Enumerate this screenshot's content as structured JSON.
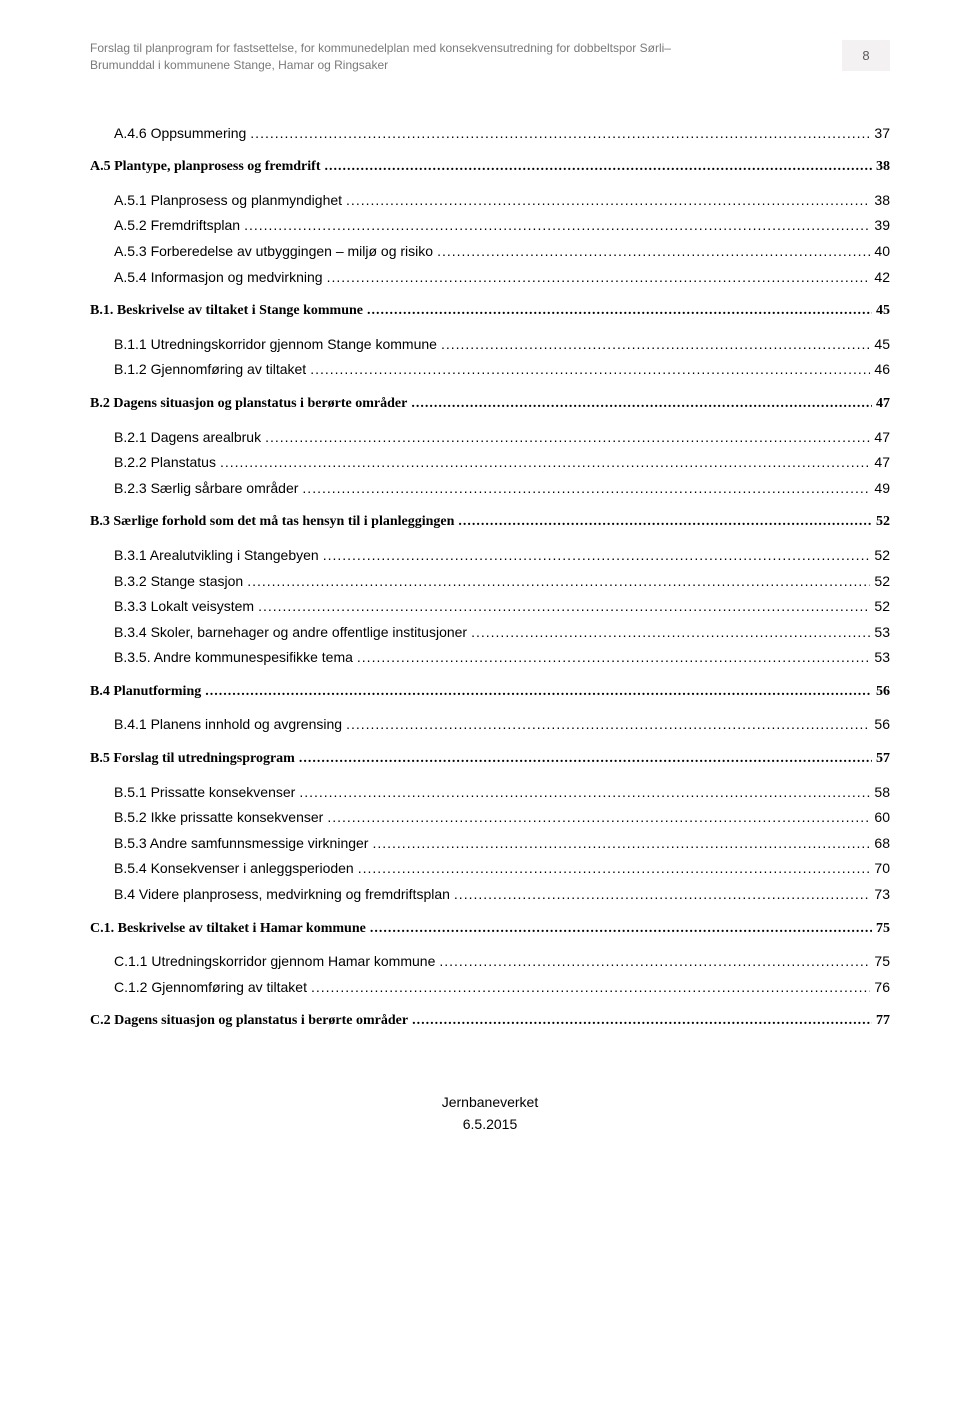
{
  "header": {
    "line1": "Forslag til planprogram for fastsettelse, for kommunedelplan med konsekvensutredning for dobbeltspor Sørli–",
    "line2": "Brumunddal i kommunene Stange, Hamar og Ringsaker",
    "page_number": "8"
  },
  "toc": [
    {
      "label": "A.4.6 Oppsummering",
      "page": "37",
      "indent": 1,
      "bold": false,
      "serif": false
    },
    {
      "label": "A.5 Plantype, planprosess og fremdrift",
      "page": "38",
      "indent": 0,
      "bold": true,
      "serif": true,
      "gap": true
    },
    {
      "label": "A.5.1 Planprosess og planmyndighet",
      "page": "38",
      "indent": 1,
      "bold": false,
      "serif": false,
      "gap": true
    },
    {
      "label": "A.5.2 Fremdriftsplan",
      "page": "39",
      "indent": 1,
      "bold": false,
      "serif": false
    },
    {
      "label": "A.5.3 Forberedelse av utbyggingen – miljø og risiko",
      "page": "40",
      "indent": 1,
      "bold": false,
      "serif": false
    },
    {
      "label": "A.5.4 Informasjon og medvirkning",
      "page": "42",
      "indent": 1,
      "bold": false,
      "serif": false
    },
    {
      "label": "B.1. Beskrivelse av tiltaket i Stange kommune",
      "page": "45",
      "indent": 0,
      "bold": true,
      "serif": true,
      "gap": true
    },
    {
      "label": "B.1.1 Utredningskorridor gjennom Stange kommune",
      "page": "45",
      "indent": 1,
      "bold": false,
      "serif": false,
      "gap": true
    },
    {
      "label": "B.1.2 Gjennomføring av tiltaket",
      "page": "46",
      "indent": 1,
      "bold": false,
      "serif": false
    },
    {
      "label": "B.2 Dagens situasjon og planstatus i berørte områder",
      "page": "47",
      "indent": 0,
      "bold": true,
      "serif": true,
      "gap": true
    },
    {
      "label": "B.2.1 Dagens arealbruk",
      "page": "47",
      "indent": 1,
      "bold": false,
      "serif": false,
      "gap": true
    },
    {
      "label": "B.2.2 Planstatus",
      "page": "47",
      "indent": 1,
      "bold": false,
      "serif": false
    },
    {
      "label": "B.2.3 Særlig sårbare områder",
      "page": "49",
      "indent": 1,
      "bold": false,
      "serif": false
    },
    {
      "label": "B.3 Særlige forhold som det må tas hensyn til i planleggingen",
      "page": "52",
      "indent": 0,
      "bold": true,
      "serif": true,
      "gap": true
    },
    {
      "label": "B.3.1 Arealutvikling i Stangebyen",
      "page": "52",
      "indent": 1,
      "bold": false,
      "serif": false,
      "gap": true
    },
    {
      "label": "B.3.2 Stange stasjon",
      "page": "52",
      "indent": 1,
      "bold": false,
      "serif": false
    },
    {
      "label": "B.3.3 Lokalt veisystem",
      "page": "52",
      "indent": 1,
      "bold": false,
      "serif": false
    },
    {
      "label": "B.3.4 Skoler, barnehager og andre offentlige institusjoner",
      "page": "53",
      "indent": 1,
      "bold": false,
      "serif": false
    },
    {
      "label": "B.3.5. Andre kommunespesifikke tema",
      "page": "53",
      "indent": 1,
      "bold": false,
      "serif": false
    },
    {
      "label": "B.4 Planutforming",
      "page": "56",
      "indent": 0,
      "bold": true,
      "serif": true,
      "gap": true
    },
    {
      "label": "B.4.1 Planens innhold og avgrensing",
      "page": "56",
      "indent": 1,
      "bold": false,
      "serif": false,
      "gap": true
    },
    {
      "label": "B.5 Forslag til utredningsprogram",
      "page": "57",
      "indent": 0,
      "bold": true,
      "serif": true,
      "gap": true
    },
    {
      "label": "B.5.1 Prissatte konsekvenser",
      "page": "58",
      "indent": 1,
      "bold": false,
      "serif": false,
      "gap": true
    },
    {
      "label": "B.5.2 Ikke prissatte konsekvenser",
      "page": "60",
      "indent": 1,
      "bold": false,
      "serif": false
    },
    {
      "label": "B.5.3 Andre samfunnsmessige virkninger",
      "page": "68",
      "indent": 1,
      "bold": false,
      "serif": false
    },
    {
      "label": "B.5.4 Konsekvenser i anleggsperioden",
      "page": "70",
      "indent": 1,
      "bold": false,
      "serif": false
    },
    {
      "label": "B.4 Videre planprosess, medvirkning og fremdriftsplan",
      "page": "73",
      "indent": 1,
      "bold": false,
      "serif": false
    },
    {
      "label": "C.1. Beskrivelse av tiltaket i Hamar kommune",
      "page": "75",
      "indent": 0,
      "bold": true,
      "serif": true,
      "gap": true
    },
    {
      "label": "C.1.1 Utredningskorridor gjennom Hamar kommune",
      "page": "75",
      "indent": 1,
      "bold": false,
      "serif": false,
      "gap": true
    },
    {
      "label": "C.1.2 Gjennomføring av tiltaket",
      "page": "76",
      "indent": 1,
      "bold": false,
      "serif": false
    },
    {
      "label": "C.2 Dagens situasjon og planstatus i berørte områder",
      "page": "77",
      "indent": 0,
      "bold": true,
      "serif": true,
      "gap": true
    }
  ],
  "footer": {
    "org": "Jernbaneverket",
    "date": "6.5.2015"
  }
}
